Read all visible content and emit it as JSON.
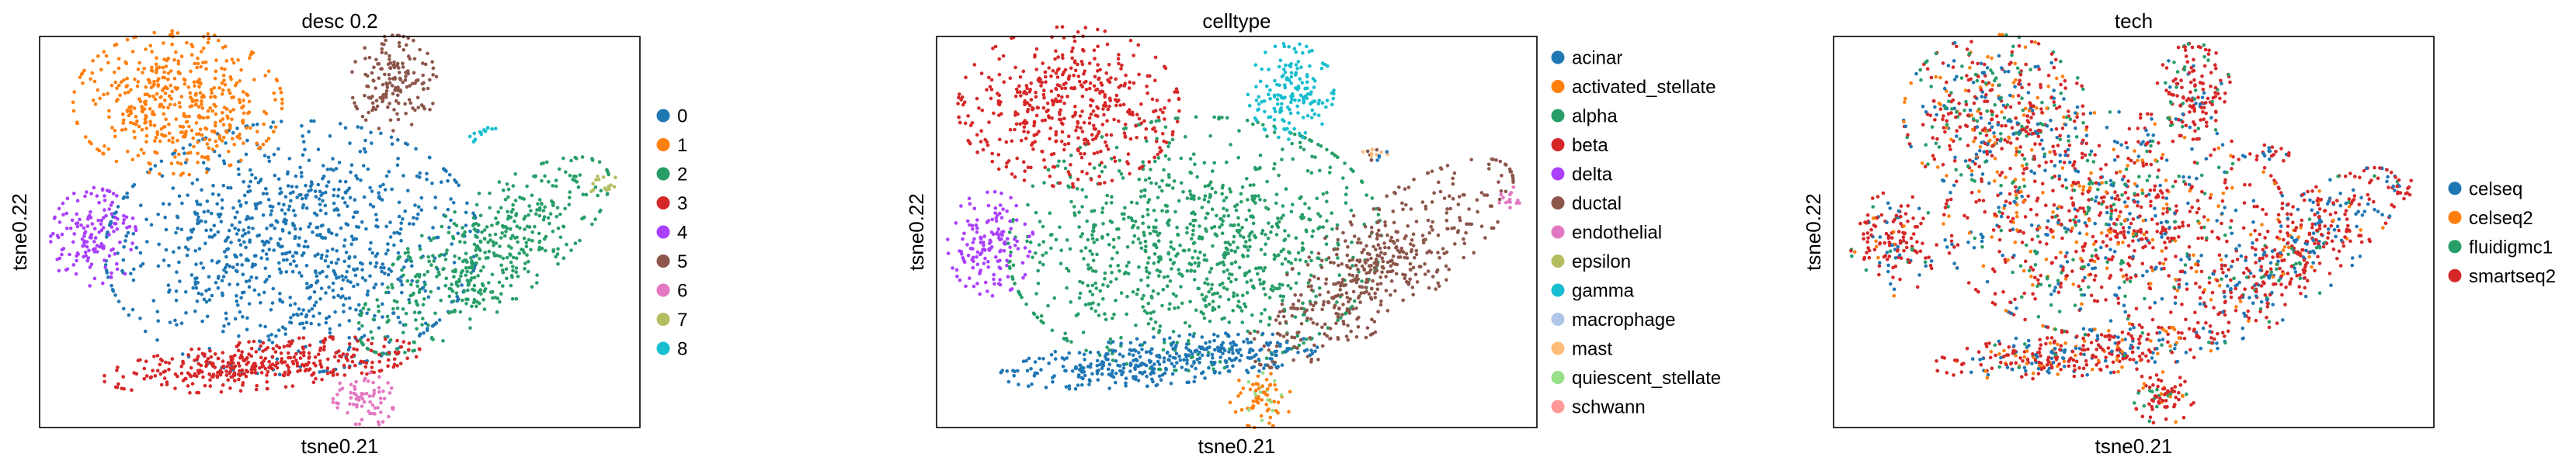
{
  "chart_data": [
    {
      "type": "scatter",
      "title": "desc 0.2",
      "xlabel": "tsne0.21",
      "ylabel": "tsne0.22",
      "grid": false,
      "legend_position": "right",
      "legend": [
        {
          "label": "0",
          "color": "#1f77b4"
        },
        {
          "label": "1",
          "color": "#ff7f0e"
        },
        {
          "label": "2",
          "color": "#279e68"
        },
        {
          "label": "3",
          "color": "#d62728"
        },
        {
          "label": "4",
          "color": "#aa40fc"
        },
        {
          "label": "5",
          "color": "#8c564b"
        },
        {
          "label": "6",
          "color": "#e377c2"
        },
        {
          "label": "7",
          "color": "#b5bd61"
        },
        {
          "label": "8",
          "color": "#17becf"
        }
      ],
      "clusters": [
        {
          "cx": 0.42,
          "cy": 0.46,
          "sx": 0.15,
          "sy": 0.16,
          "rot": -25,
          "n": 950,
          "mix": [
            [
              "0",
              1
            ]
          ]
        },
        {
          "cx": 0.23,
          "cy": 0.83,
          "sx": 0.085,
          "sy": 0.09,
          "rot": 0,
          "n": 480,
          "mix": [
            [
              "1",
              1
            ]
          ]
        },
        {
          "cx": 0.74,
          "cy": 0.44,
          "sx": 0.055,
          "sy": 0.15,
          "rot": -38,
          "n": 480,
          "mix": [
            [
              "2",
              1
            ]
          ]
        },
        {
          "cx": 0.37,
          "cy": 0.16,
          "sx": 0.13,
          "sy": 0.03,
          "rot": 8,
          "n": 380,
          "mix": [
            [
              "3",
              1
            ]
          ]
        },
        {
          "cx": 0.09,
          "cy": 0.48,
          "sx": 0.035,
          "sy": 0.065,
          "rot": 0,
          "n": 150,
          "mix": [
            [
              "4",
              1
            ]
          ]
        },
        {
          "cx": 0.59,
          "cy": 0.88,
          "sx": 0.035,
          "sy": 0.06,
          "rot": 0,
          "n": 160,
          "mix": [
            [
              "5",
              1
            ]
          ]
        },
        {
          "cx": 0.54,
          "cy": 0.07,
          "sx": 0.025,
          "sy": 0.035,
          "rot": 0,
          "n": 70,
          "mix": [
            [
              "6",
              1
            ]
          ]
        },
        {
          "cx": 0.94,
          "cy": 0.62,
          "sx": 0.012,
          "sy": 0.015,
          "rot": 0,
          "n": 14,
          "mix": [
            [
              "7",
              1
            ]
          ]
        },
        {
          "cx": 0.74,
          "cy": 0.75,
          "sx": 0.014,
          "sy": 0.014,
          "rot": 0,
          "n": 14,
          "mix": [
            [
              "8",
              1
            ]
          ]
        }
      ]
    },
    {
      "type": "scatter",
      "title": "celltype",
      "xlabel": "tsne0.21",
      "ylabel": "tsne0.22",
      "grid": false,
      "legend_position": "right",
      "legend": [
        {
          "label": "acinar",
          "color": "#1f77b4"
        },
        {
          "label": "activated_stellate",
          "color": "#ff7f0e"
        },
        {
          "label": "alpha",
          "color": "#279e68"
        },
        {
          "label": "beta",
          "color": "#d62728"
        },
        {
          "label": "delta",
          "color": "#aa40fc"
        },
        {
          "label": "ductal",
          "color": "#8c564b"
        },
        {
          "label": "endothelial",
          "color": "#e377c2"
        },
        {
          "label": "epsilon",
          "color": "#b5bd61"
        },
        {
          "label": "gamma",
          "color": "#17becf"
        },
        {
          "label": "macrophage",
          "color": "#aec7e8"
        },
        {
          "label": "mast",
          "color": "#ffbb78"
        },
        {
          "label": "quiescent_stellate",
          "color": "#98df8a"
        },
        {
          "label": "schwann",
          "color": "#ff9896"
        }
      ],
      "clusters": [
        {
          "cx": 0.43,
          "cy": 0.47,
          "sx": 0.15,
          "sy": 0.16,
          "rot": -25,
          "n": 950,
          "mix": [
            [
              "alpha",
              1
            ]
          ]
        },
        {
          "cx": 0.22,
          "cy": 0.82,
          "sx": 0.09,
          "sy": 0.1,
          "rot": 0,
          "n": 480,
          "mix": [
            [
              "beta",
              1
            ]
          ]
        },
        {
          "cx": 0.74,
          "cy": 0.42,
          "sx": 0.055,
          "sy": 0.16,
          "rot": -38,
          "n": 480,
          "mix": [
            [
              "ductal",
              1
            ]
          ]
        },
        {
          "cx": 0.37,
          "cy": 0.17,
          "sx": 0.13,
          "sy": 0.03,
          "rot": 8,
          "n": 380,
          "mix": [
            [
              "acinar",
              1
            ]
          ]
        },
        {
          "cx": 0.09,
          "cy": 0.47,
          "sx": 0.035,
          "sy": 0.065,
          "rot": 0,
          "n": 150,
          "mix": [
            [
              "delta",
              1
            ]
          ]
        },
        {
          "cx": 0.59,
          "cy": 0.86,
          "sx": 0.035,
          "sy": 0.06,
          "rot": 0,
          "n": 160,
          "mix": [
            [
              "gamma",
              1
            ]
          ]
        },
        {
          "cx": 0.54,
          "cy": 0.07,
          "sx": 0.025,
          "sy": 0.035,
          "rot": 0,
          "n": 70,
          "mix": [
            [
              "activated_stellate",
              0.85
            ],
            [
              "quiescent_stellate",
              0.15
            ]
          ]
        },
        {
          "cx": 0.95,
          "cy": 0.59,
          "sx": 0.012,
          "sy": 0.015,
          "rot": 0,
          "n": 14,
          "mix": [
            [
              "endothelial",
              1
            ]
          ]
        },
        {
          "cx": 0.73,
          "cy": 0.7,
          "sx": 0.012,
          "sy": 0.012,
          "rot": 0,
          "n": 16,
          "mix": [
            [
              "ductal",
              0.4
            ],
            [
              "acinar",
              0.3
            ],
            [
              "mast",
              0.3
            ]
          ]
        }
      ]
    },
    {
      "type": "scatter",
      "title": "tech",
      "xlabel": "tsne0.21",
      "ylabel": "tsne0.22",
      "grid": false,
      "legend_position": "right",
      "legend": [
        {
          "label": "celseq",
          "color": "#1f77b4"
        },
        {
          "label": "celseq2",
          "color": "#ff7f0e"
        },
        {
          "label": "fluidigmc1",
          "color": "#279e68"
        },
        {
          "label": "smartseq2",
          "color": "#d62728"
        }
      ],
      "clusters": [
        {
          "cx": 0.47,
          "cy": 0.52,
          "sx": 0.14,
          "sy": 0.14,
          "rot": -25,
          "n": 950,
          "mix": [
            [
              "smartseq2",
              0.5
            ],
            [
              "celseq",
              0.25
            ],
            [
              "fluidigmc1",
              0.12
            ],
            [
              "celseq2",
              0.13
            ]
          ]
        },
        {
          "cx": 0.27,
          "cy": 0.8,
          "sx": 0.075,
          "sy": 0.1,
          "rot": 0,
          "n": 450,
          "mix": [
            [
              "smartseq2",
              0.45
            ],
            [
              "celseq",
              0.2
            ],
            [
              "fluidigmc1",
              0.2
            ],
            [
              "celseq2",
              0.15
            ]
          ]
        },
        {
          "cx": 0.77,
          "cy": 0.44,
          "sx": 0.045,
          "sy": 0.13,
          "rot": -35,
          "n": 420,
          "mix": [
            [
              "smartseq2",
              0.55
            ],
            [
              "celseq",
              0.3
            ],
            [
              "fluidigmc1",
              0.1
            ],
            [
              "celseq2",
              0.05
            ]
          ]
        },
        {
          "cx": 0.41,
          "cy": 0.19,
          "sx": 0.12,
          "sy": 0.028,
          "rot": 8,
          "n": 330,
          "mix": [
            [
              "smartseq2",
              0.5
            ],
            [
              "celseq",
              0.3
            ],
            [
              "celseq2",
              0.15
            ],
            [
              "fluidigmc1",
              0.05
            ]
          ]
        },
        {
          "cx": 0.1,
          "cy": 0.47,
          "sx": 0.035,
          "sy": 0.065,
          "rot": 0,
          "n": 150,
          "mix": [
            [
              "smartseq2",
              0.6
            ],
            [
              "celseq",
              0.2
            ],
            [
              "fluidigmc1",
              0.1
            ],
            [
              "celseq2",
              0.1
            ]
          ]
        },
        {
          "cx": 0.6,
          "cy": 0.86,
          "sx": 0.03,
          "sy": 0.06,
          "rot": 0,
          "n": 150,
          "mix": [
            [
              "smartseq2",
              0.7
            ],
            [
              "fluidigmc1",
              0.2
            ],
            [
              "celseq",
              0.1
            ]
          ]
        },
        {
          "cx": 0.55,
          "cy": 0.08,
          "sx": 0.025,
          "sy": 0.035,
          "rot": 0,
          "n": 80,
          "mix": [
            [
              "smartseq2",
              0.65
            ],
            [
              "fluidigmc1",
              0.2
            ],
            [
              "celseq2",
              0.15
            ]
          ]
        },
        {
          "cx": 0.95,
          "cy": 0.61,
          "sx": 0.012,
          "sy": 0.012,
          "rot": 0,
          "n": 14,
          "mix": [
            [
              "smartseq2",
              0.7
            ],
            [
              "celseq",
              0.3
            ]
          ]
        },
        {
          "cx": 0.73,
          "cy": 0.7,
          "sx": 0.014,
          "sy": 0.012,
          "rot": 0,
          "n": 18,
          "mix": [
            [
              "celseq",
              0.5
            ],
            [
              "smartseq2",
              0.5
            ]
          ]
        }
      ]
    }
  ]
}
